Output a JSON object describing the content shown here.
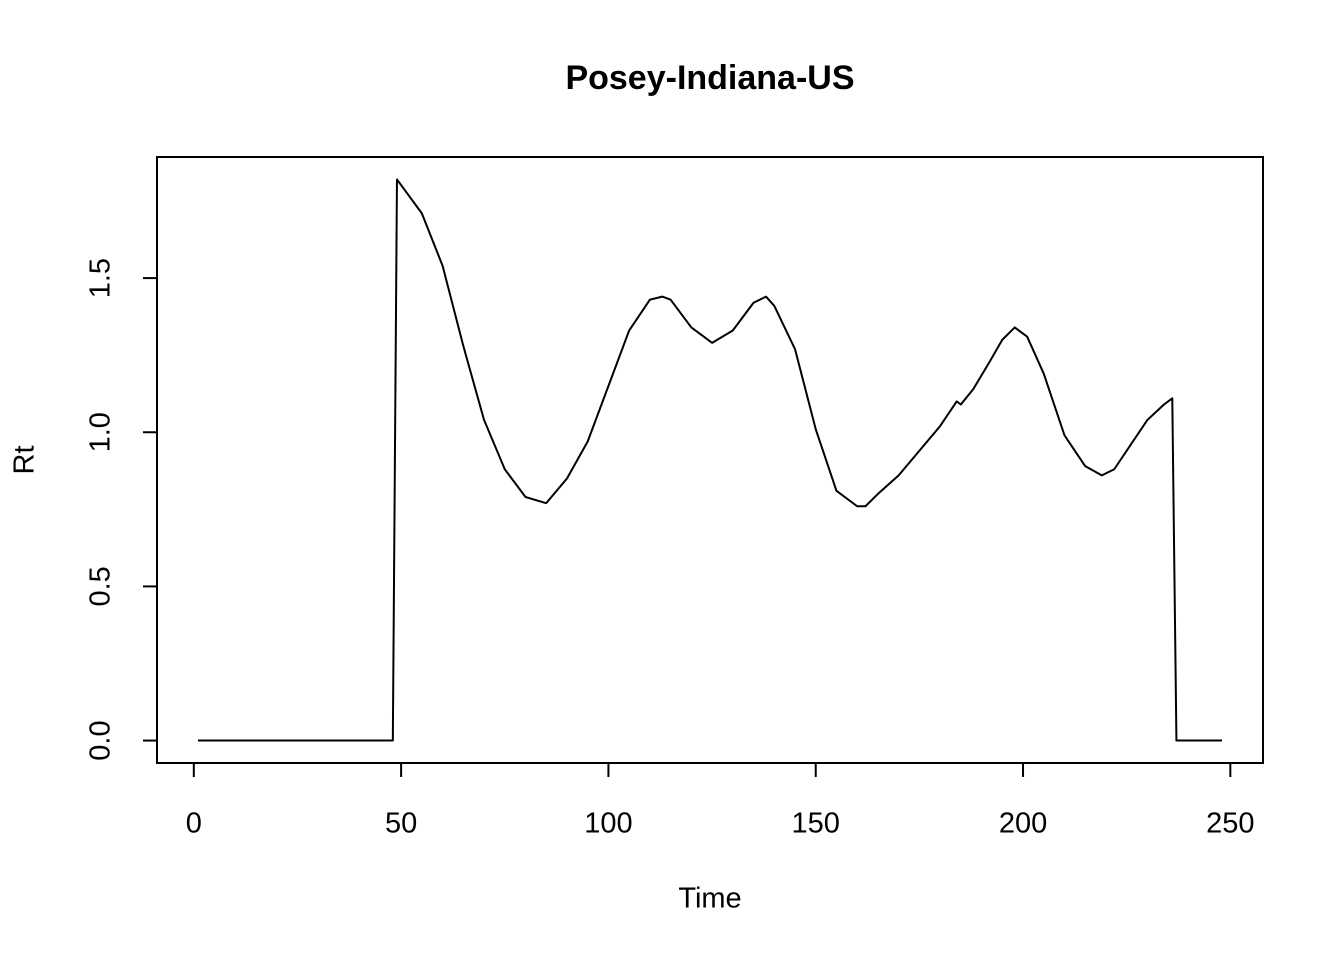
{
  "chart_data": {
    "type": "line",
    "title": "Posey-Indiana-US",
    "x_label": "Time",
    "y_label": "Rt",
    "x": [
      1,
      48,
      49,
      55,
      60,
      65,
      70,
      75,
      80,
      85,
      90,
      95,
      100,
      105,
      110,
      113,
      115,
      120,
      125,
      130,
      135,
      138,
      140,
      145,
      150,
      155,
      160,
      162,
      165,
      170,
      175,
      180,
      184,
      185,
      188,
      192,
      195,
      198,
      201,
      205,
      210,
      215,
      219,
      222,
      226,
      230,
      234,
      236,
      237,
      248
    ],
    "series": [
      {
        "name": "Rt",
        "color": "#000000",
        "values": [
          0,
          0,
          1.82,
          1.71,
          1.54,
          1.28,
          1.04,
          0.88,
          0.79,
          0.77,
          0.85,
          0.97,
          1.15,
          1.33,
          1.43,
          1.44,
          1.43,
          1.34,
          1.29,
          1.33,
          1.42,
          1.44,
          1.41,
          1.27,
          1.01,
          0.81,
          0.76,
          0.76,
          0.8,
          0.86,
          0.94,
          1.02,
          1.1,
          1.09,
          1.14,
          1.23,
          1.3,
          1.34,
          1.31,
          1.19,
          0.99,
          0.89,
          0.86,
          0.88,
          0.96,
          1.04,
          1.09,
          1.11,
          0,
          0
        ]
      }
    ],
    "xlim": [
      -8.88,
      257.88
    ],
    "ylim": [
      -0.0728,
      1.8928
    ],
    "xticks": [
      0,
      50,
      100,
      150,
      200,
      250
    ],
    "yticks": [
      {
        "value": 0,
        "label": "0.0"
      },
      0.5,
      {
        "value": 1,
        "label": "1.0"
      },
      1.5
    ]
  }
}
